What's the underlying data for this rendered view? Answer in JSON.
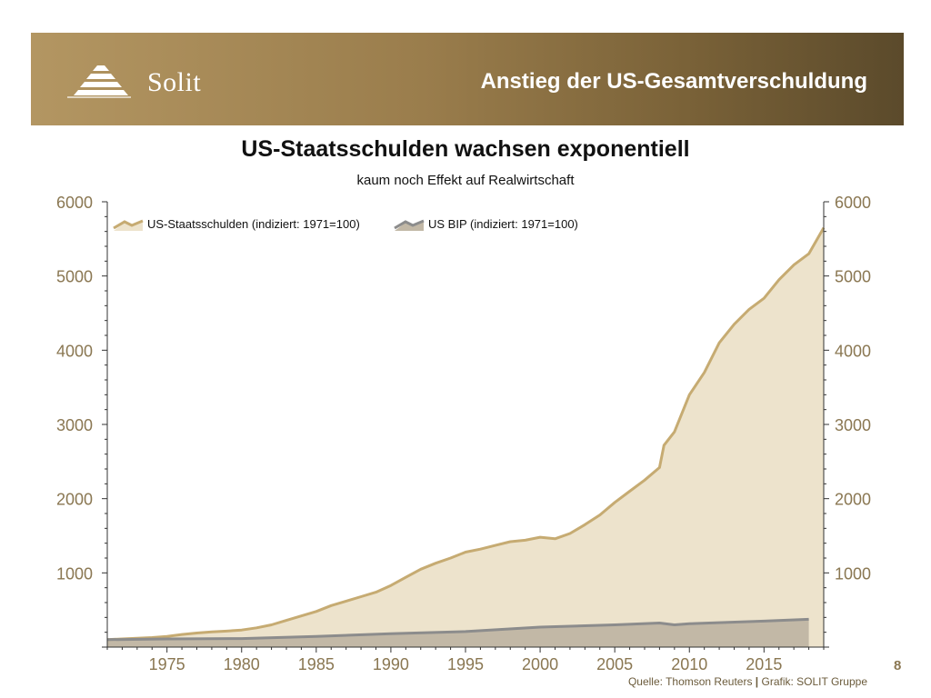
{
  "header": {
    "brand": "Solit",
    "title": "Anstieg der US-Gesamtverschuldung"
  },
  "footer": {
    "page_number": "8",
    "source_left": "Quelle: Thomson Reuters",
    "source_sep": "|",
    "source_right": "Grafik: SOLIT Gruppe"
  },
  "colors": {
    "header_gradient": [
      "#b39662",
      "#5b4a2b"
    ],
    "debt_line": "#c6ab72",
    "debt_fill": "#ede3cc",
    "gdp_line": "#8c8c8c",
    "gdp_fill": "#c2b8a6",
    "tick_label": "#8a7752"
  },
  "chart_data": {
    "type": "area",
    "title": "US-Staatsschulden wachsen exponentiell",
    "subtitle": "kaum noch Effekt auf Realwirtschaft",
    "xlabel": "",
    "ylabel": "",
    "xlim": [
      1971,
      2019
    ],
    "ylim": [
      0,
      6000
    ],
    "x_ticks": [
      1975,
      1980,
      1985,
      1990,
      1995,
      2000,
      2005,
      2010,
      2015
    ],
    "y_ticks": [
      1000,
      2000,
      3000,
      4000,
      5000,
      6000
    ],
    "legend_position": "top-left",
    "grid": false,
    "series": [
      {
        "name": "US-Staatsschulden (indiziert: 1971=100)",
        "x": [
          1971,
          1972,
          1973,
          1974,
          1975,
          1976,
          1977,
          1978,
          1979,
          1980,
          1981,
          1982,
          1983,
          1984,
          1985,
          1986,
          1987,
          1988,
          1989,
          1990,
          1991,
          1992,
          1993,
          1994,
          1995,
          1996,
          1997,
          1998,
          1999,
          2000,
          2001,
          2002,
          2003,
          2004,
          2005,
          2006,
          2007,
          2008,
          2008.3,
          2009,
          2010,
          2011,
          2012,
          2013,
          2014,
          2015,
          2016,
          2017,
          2018,
          2019
        ],
        "values": [
          100,
          110,
          120,
          128,
          145,
          170,
          190,
          205,
          215,
          230,
          260,
          300,
          360,
          420,
          480,
          560,
          620,
          680,
          740,
          830,
          940,
          1050,
          1130,
          1200,
          1280,
          1320,
          1370,
          1420,
          1440,
          1480,
          1460,
          1530,
          1650,
          1780,
          1950,
          2100,
          2250,
          2420,
          2720,
          2900,
          3400,
          3700,
          4100,
          4350,
          4550,
          4700,
          4950,
          5150,
          5300,
          5650
        ]
      },
      {
        "name": "US BIP (indiziert: 1971=100)",
        "x": [
          1971,
          1975,
          1980,
          1985,
          1990,
          1995,
          2000,
          2005,
          2008,
          2009,
          2010,
          2015,
          2018
        ],
        "values": [
          100,
          110,
          115,
          145,
          180,
          210,
          270,
          300,
          325,
          300,
          315,
          350,
          375
        ]
      }
    ]
  }
}
